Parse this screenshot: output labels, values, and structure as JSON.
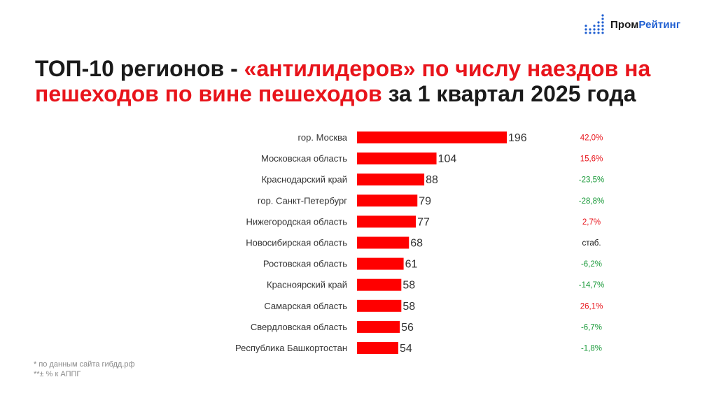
{
  "brand": {
    "part1": "Пром",
    "part2": "Рейтинг"
  },
  "title": {
    "part1": "ТОП-10 регионов - ",
    "part2": "«антилидеров» по числу наездов на пешеходов по вине пешеходов",
    "part3": " за 1 квартал 2025 года"
  },
  "colors": {
    "bar": "#ff0000",
    "increase": "#e8141b",
    "decrease": "#1a9a3a",
    "neutral": "#1a1a1a",
    "brand_blue": "#1f5fd1"
  },
  "chart_data": {
    "type": "bar",
    "orientation": "horizontal",
    "categories": [
      "гор. Москва",
      "Московская область",
      "Краснодарский край",
      "гор. Санкт-Петербург",
      "Нижегородская область",
      "Новосибирская область",
      "Ростовская область",
      "Красноярский край",
      "Самарская область",
      "Свердловская область",
      "Республика Башкортостан"
    ],
    "values": [
      196,
      104,
      88,
      79,
      77,
      68,
      61,
      58,
      58,
      56,
      54
    ],
    "changes": [
      "42,0%",
      "15,6%",
      "-23,5%",
      "-28,8%",
      "2,7%",
      "стаб.",
      "-6,2%",
      "-14,7%",
      "26,1%",
      "-6,7%",
      "-1,8%"
    ],
    "change_direction": [
      "up",
      "up",
      "down",
      "down",
      "up",
      "neutral",
      "down",
      "down",
      "up",
      "down",
      "down"
    ],
    "xlim": [
      0,
      196
    ],
    "grid": false,
    "legend": "none"
  },
  "footnotes": [
    "* по данным сайта гибдд.рф",
    "**± % к АППГ"
  ]
}
